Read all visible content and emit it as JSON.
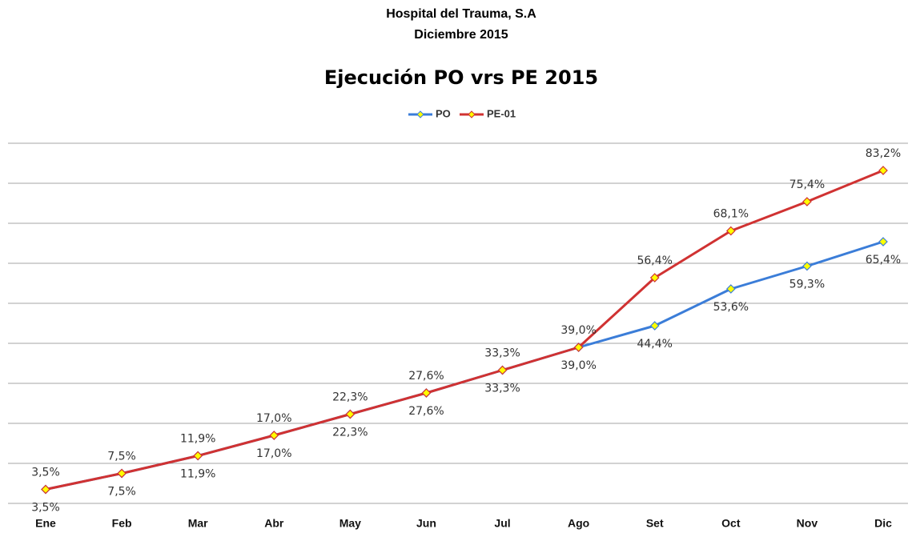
{
  "chart_data": {
    "type": "line",
    "title": "Hospital del Trauma, S.A",
    "subtitle": "Diciembre 2015",
    "chart_title": "Ejecución PO vrs PE 2015",
    "categories": [
      "Ene",
      "Feb",
      "Mar",
      "Abr",
      "May",
      "Jun",
      "Jul",
      "Ago",
      "Set",
      "Oct",
      "Nov",
      "Dic"
    ],
    "series": [
      {
        "name": "PO",
        "color": "#3b7dd8",
        "values": [
          3.5,
          7.5,
          11.9,
          17.0,
          22.3,
          27.6,
          33.3,
          39.0,
          44.4,
          53.6,
          59.3,
          65.4
        ],
        "value_labels": [
          "3,5%",
          "7,5%",
          "11,9%",
          "17,0%",
          "22,3%",
          "27,6%",
          "33,3%",
          "39,0%",
          "44,4%",
          "53,6%",
          "59,3%",
          "65,4%"
        ]
      },
      {
        "name": "PE-01",
        "color": "#d03232",
        "values": [
          3.5,
          7.5,
          11.9,
          17.0,
          22.3,
          27.6,
          33.3,
          39.0,
          56.4,
          68.1,
          75.4,
          83.2
        ],
        "value_labels": [
          "3,5%",
          "7,5%",
          "11,9%",
          "17,0%",
          "22,3%",
          "27,6%",
          "33,3%",
          "39,0%",
          "56,4%",
          "68,1%",
          "75,4%",
          "83,2%"
        ]
      }
    ],
    "marker_color": "#ffff00",
    "ylim": [
      0,
      90
    ],
    "yticks": [
      0,
      10,
      20,
      30,
      40,
      50,
      60,
      70,
      80,
      90
    ],
    "grid": true,
    "legend": "top"
  }
}
